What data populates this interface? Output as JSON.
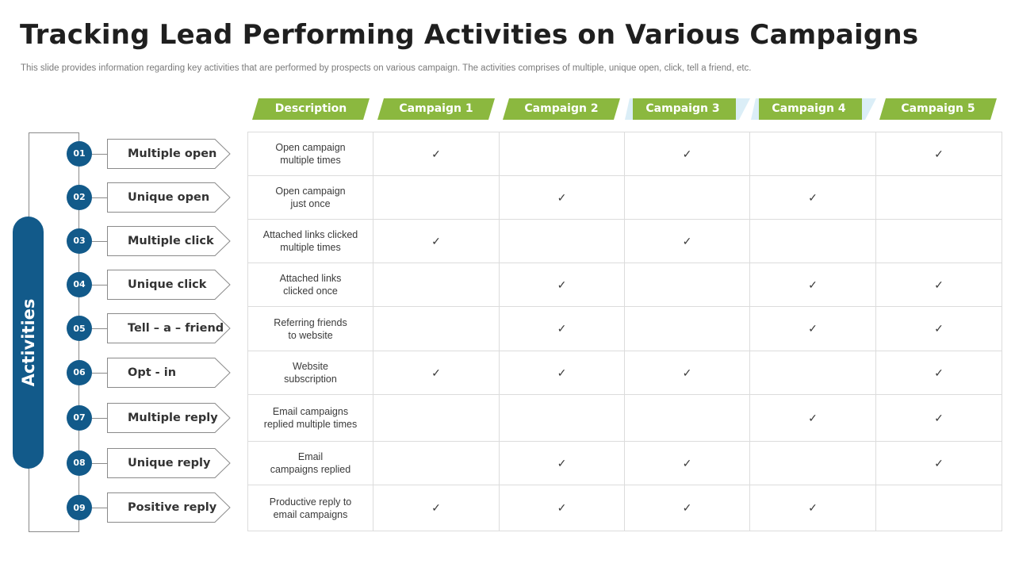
{
  "title": "Tracking Lead Performing Activities on Various Campaigns",
  "subtitle": "This slide provides information regarding key activities that are performed by prospects on various campaign. The activities comprises of multiple, unique open, click, tell a friend, etc.",
  "side_label": "Activities",
  "colors": {
    "blue": "#125a8a",
    "green": "#8bb83f",
    "light_blue": "#dbeef7"
  },
  "headers": [
    "Description",
    "Campaign 1",
    "Campaign 2",
    "Campaign 3",
    "Campaign 4",
    "Campaign 5"
  ],
  "check_mark": "✓",
  "activities": [
    {
      "num": "01",
      "label": "Multiple open",
      "desc": [
        "Open campaign",
        "multiple times"
      ],
      "checks": [
        1,
        0,
        1,
        0,
        1
      ]
    },
    {
      "num": "02",
      "label": "Unique open",
      "desc": [
        "Open campaign",
        "just once"
      ],
      "checks": [
        0,
        1,
        0,
        1,
        0
      ]
    },
    {
      "num": "03",
      "label": "Multiple click",
      "desc": [
        "Attached links clicked",
        "multiple times"
      ],
      "checks": [
        1,
        0,
        1,
        0,
        0
      ]
    },
    {
      "num": "04",
      "label": "Unique click",
      "desc": [
        "Attached links",
        "clicked once"
      ],
      "checks": [
        0,
        1,
        0,
        1,
        1
      ]
    },
    {
      "num": "05",
      "label": "Tell – a – friend",
      "desc": [
        "Referring  friends",
        "to website"
      ],
      "checks": [
        0,
        1,
        0,
        1,
        1
      ]
    },
    {
      "num": "06",
      "label": "Opt - in",
      "desc": [
        "Website",
        "subscription"
      ],
      "checks": [
        1,
        1,
        1,
        0,
        1
      ]
    },
    {
      "num": "07",
      "label": "Multiple reply",
      "desc": [
        "Email campaigns",
        "replied multiple times"
      ],
      "checks": [
        0,
        0,
        0,
        1,
        1
      ]
    },
    {
      "num": "08",
      "label": "Unique reply",
      "desc": [
        "Email",
        "campaigns  replied"
      ],
      "checks": [
        0,
        1,
        1,
        0,
        1
      ]
    },
    {
      "num": "09",
      "label": "Positive reply",
      "desc": [
        "Productive reply to",
        "email campaigns"
      ],
      "checks": [
        1,
        1,
        1,
        1,
        0
      ]
    }
  ]
}
